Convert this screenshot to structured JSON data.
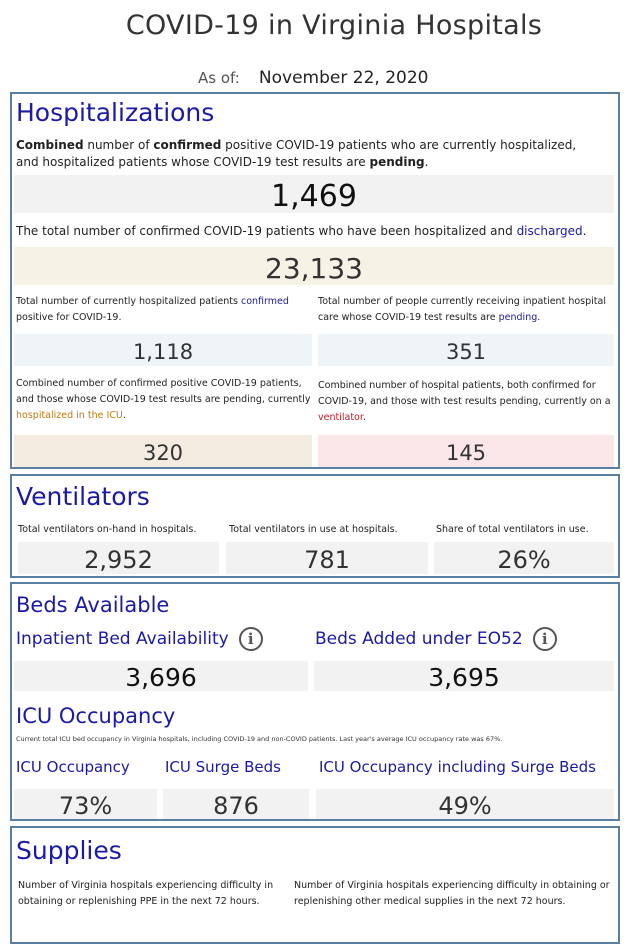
{
  "title": "COVID-19 in Virginia Hospitals",
  "as_of": {
    "label": "As of:",
    "date": "November 22, 2020"
  },
  "hospitalizations": {
    "heading": "Hospitalizations",
    "combined_desc": {
      "p1": "Combined",
      "p2": " number of ",
      "p3": "confirmed",
      "p4": " positive COVID-19 patients who are currently hospitalized, and hospitalized patients whose COVID-19 test results are ",
      "p5": "pending",
      "p6": "."
    },
    "combined_value": "1,469",
    "discharged_desc": {
      "p1": "The total number of confirmed COVID-19 patients who have been hospitalized and ",
      "p2": "discharged",
      "p3": "."
    },
    "discharged_value": "23,133",
    "confirmed_desc": {
      "p1": "Total number of currently hospitalized patients ",
      "p2": "confirmed",
      "p3": " positive for COVID-19."
    },
    "confirmed_value": "1,118",
    "pending_desc": {
      "p1": "Total number of people currently receiving inpatient hospital care whose COVID-19 test results are ",
      "p2": "pending",
      "p3": "."
    },
    "pending_value": "351",
    "icu_desc": {
      "p1": "Combined number of confirmed positive COVID-19 patients, and those whose COVID-19 test results are pending, currently ",
      "p2": "hospitalized in the ICU",
      "p3": "."
    },
    "icu_value": "320",
    "vent_desc": {
      "p1": "Combined number of hospital patients, both confirmed for COVID-19, and those with test results pending, currently on a ",
      "p2": "ventilator",
      "p3": "."
    },
    "vent_value": "145"
  },
  "ventilators": {
    "heading": "Ventilators",
    "onhand_label": "Total ventilators on-hand in hospitals.",
    "onhand_value": "2,952",
    "inuse_label": "Total ventilators in use at hospitals.",
    "inuse_value": "781",
    "share_label": "Share of total ventilators in use.",
    "share_value": "26%"
  },
  "beds": {
    "heading": "Beds Available",
    "inpatient_label": "Inpatient Bed Availability",
    "inpatient_value": "3,696",
    "eo52_label": "Beds Added under EO52",
    "eo52_value": "3,695",
    "info_glyph": "i"
  },
  "icu": {
    "heading": "ICU Occupancy",
    "desc": "Current total ICU bed occupancy in Virginia hospitals, including COVID-19 and non-COVID patients. Last year's average ICU occupancy rate was 67%.",
    "occupancy_label": "ICU Occupancy",
    "occupancy_value": "73%",
    "surge_label": "ICU Surge Beds",
    "surge_value": "876",
    "incl_label": "ICU Occupancy including Surge Beds",
    "incl_value": "49%"
  },
  "supplies": {
    "heading": "Supplies",
    "ppe_desc": "Number of Virginia hospitals experiencing difficulty in obtaining or replenishing PPE in the next 72 hours.",
    "other_desc": "Number of Virginia hospitals experiencing difficulty in obtaining or replenishing other medical supplies in the next 72 hours."
  },
  "colors": {
    "heading_blue": "#1a1aa6",
    "panel_border": "#5b7fa3",
    "icu_orange": "#c07a10",
    "vent_red": "#c0202a"
  }
}
